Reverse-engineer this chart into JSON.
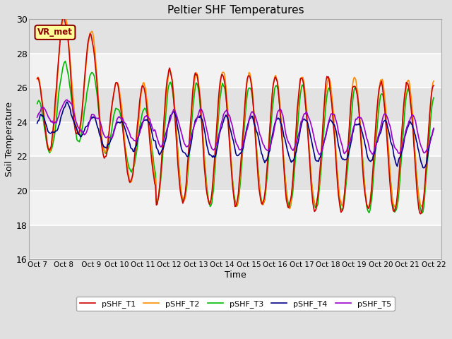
{
  "title": "Peltier SHF Temperatures",
  "xlabel": "Time",
  "ylabel": "Soil Temperature",
  "ylim": [
    16,
    30
  ],
  "yticks": [
    16,
    18,
    20,
    22,
    24,
    26,
    28,
    30
  ],
  "xtick_labels": [
    "Oct 7",
    "Oct 8",
    " Oct 9",
    "Oct 10",
    "Oct 11",
    "Oct 12",
    "Oct 13",
    "Oct 14",
    "Oct 15",
    "Oct 16",
    "Oct 17",
    "Oct 18",
    "Oct 19",
    "Oct 20",
    "Oct 21",
    "Oct 22"
  ],
  "annotation_text": "VR_met",
  "annotation_color": "#8B0000",
  "annotation_bg": "#FFFF99",
  "series_colors": [
    "#CC0000",
    "#FF8C00",
    "#00BB00",
    "#00008B",
    "#9900CC"
  ],
  "series_names": [
    "pSHF_T1",
    "pSHF_T2",
    "pSHF_T3",
    "pSHF_T4",
    "pSHF_T5"
  ],
  "line_width": 1.2,
  "background_color": "#E0E0E0",
  "plot_bg_light": "#F2F2F2",
  "plot_bg_dark": "#E2E2E2",
  "num_points": 480,
  "figsize": [
    6.4,
    4.8
  ],
  "dpi": 100
}
